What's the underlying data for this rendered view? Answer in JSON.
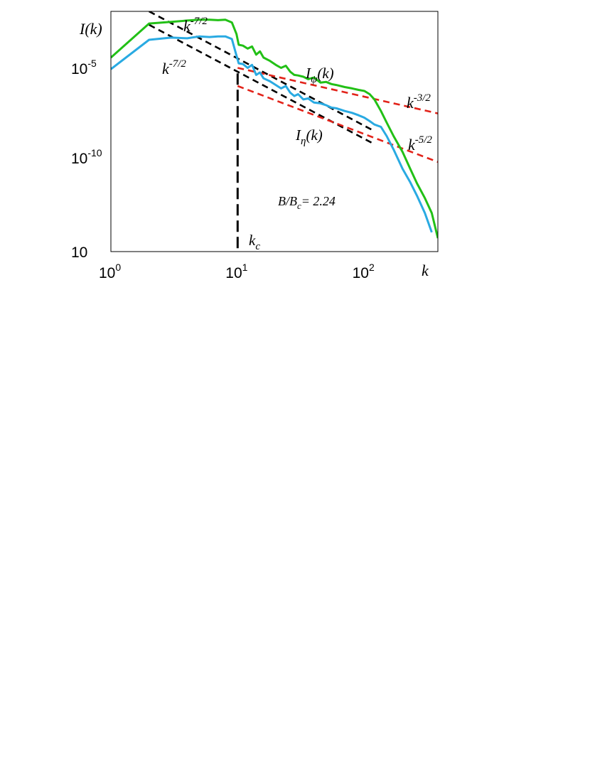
{
  "chart_data": {
    "type": "line",
    "xscale": "log",
    "yscale": "log",
    "xlim": [
      1,
      380
    ],
    "ylim": [
      1e-15,
      0.003
    ],
    "x_ticks": [
      {
        "base": "10",
        "exp": "0"
      },
      {
        "base": "10",
        "exp": "1"
      },
      {
        "base": "10",
        "exp": "2"
      }
    ],
    "y_ticks": [
      {
        "base": "10",
        "exp": "-5"
      },
      {
        "base": "10",
        "exp": "-10"
      },
      {
        "base": "10",
        "exp": ""
      }
    ],
    "xlabel": "k",
    "ylabel": "I(k)",
    "series": [
      {
        "name": "I_ψ(k)",
        "color": "#22c016",
        "x": [
          1,
          2,
          3,
          4,
          5,
          6,
          7,
          8,
          9,
          9.8,
          10.2,
          11,
          12,
          13,
          14,
          15,
          16,
          18,
          20,
          22,
          24,
          26,
          28,
          30,
          33,
          36,
          40,
          45,
          50,
          55,
          60,
          70,
          80,
          90,
          100,
          110,
          120,
          135,
          150,
          170,
          200,
          230,
          260,
          300,
          340,
          380
        ],
        "y": [
          1.2e-05,
          0.0007,
          0.00085,
          0.001,
          0.0011,
          0.0011,
          0.00105,
          0.0011,
          0.0008,
          0.0002,
          5.5e-05,
          5e-05,
          3.5e-05,
          4.5e-05,
          1.7e-05,
          2.5e-05,
          1.2e-05,
          8e-06,
          5e-06,
          3.5e-06,
          4.5e-06,
          2.2e-06,
          1.5e-06,
          1.4e-06,
          1.2e-06,
          9e-07,
          1.1e-06,
          6e-07,
          6.5e-07,
          5e-07,
          4.5e-07,
          3.5e-07,
          3e-07,
          2.5e-07,
          2.2e-07,
          1.5e-07,
          8e-08,
          2e-08,
          5e-09,
          1e-09,
          1.5e-10,
          2e-11,
          3.5e-12,
          6e-13,
          1e-13,
          5e-15
        ]
      },
      {
        "name": "I_η(k)",
        "color": "#29aae2",
        "x": [
          1,
          2,
          3,
          4,
          5,
          6,
          7,
          8,
          9,
          9.8,
          10.2,
          11,
          12,
          13,
          14,
          15,
          16,
          18,
          20,
          22,
          24,
          26,
          28,
          30,
          33,
          36,
          40,
          45,
          50,
          55,
          60,
          70,
          80,
          90,
          100,
          110,
          120,
          135,
          150,
          170,
          200,
          230,
          260,
          300,
          340
        ],
        "y": [
          3e-06,
          0.0001,
          0.00013,
          0.00012,
          0.00015,
          0.00014,
          0.00015,
          0.00015,
          0.00011,
          1.5e-05,
          6e-06,
          5.5e-06,
          3.5e-06,
          5e-06,
          1.5e-06,
          2e-06,
          1e-06,
          7e-07,
          4.5e-07,
          3e-07,
          4e-07,
          1.8e-07,
          1.2e-07,
          1.5e-07,
          8e-08,
          9e-08,
          5.5e-08,
          5e-08,
          4e-08,
          3e-08,
          2.8e-08,
          2e-08,
          1.6e-08,
          1.2e-08,
          9e-09,
          6e-09,
          4e-09,
          3e-09,
          1e-09,
          2e-10,
          2e-11,
          4e-12,
          8e-13,
          1e-13,
          1e-14
        ]
      }
    ],
    "reference_lines": [
      {
        "label_base": "k",
        "label_exp": "-7/2",
        "color": "#000000",
        "x": [
          2,
          120
        ],
        "y": [
          0.003,
          1.8e-09
        ]
      },
      {
        "label_base": "k",
        "label_exp": "-7/2",
        "color": "#000000",
        "x": [
          2,
          115
        ],
        "y": [
          0.0006,
          4.4e-10
        ]
      },
      {
        "label_base": "k",
        "label_exp": "-3/2",
        "color": "#e2231a",
        "x": [
          10,
          380
        ],
        "y": [
          3.5e-06,
          1.5e-08
        ]
      },
      {
        "label_base": "k",
        "label_exp": "-5/2",
        "color": "#e2231a",
        "x": [
          10,
          380
        ],
        "y": [
          4e-07,
          4.5e-11
        ]
      },
      {
        "label_base": "",
        "label_exp": "",
        "color": "#000000",
        "x": [
          10,
          10
        ],
        "y": [
          1.8e-06,
          1e-15
        ]
      }
    ],
    "annotations": {
      "psi": {
        "base": "I",
        "sub": "ψ",
        "rest": "(k)"
      },
      "eta": {
        "base": "I",
        "sub": "η",
        "rest": "(k)"
      },
      "ratio": {
        "prefix": "B/B",
        "sub": "c",
        "value": "= 2.24"
      },
      "kc": {
        "base": "k",
        "sub": "c"
      }
    }
  }
}
